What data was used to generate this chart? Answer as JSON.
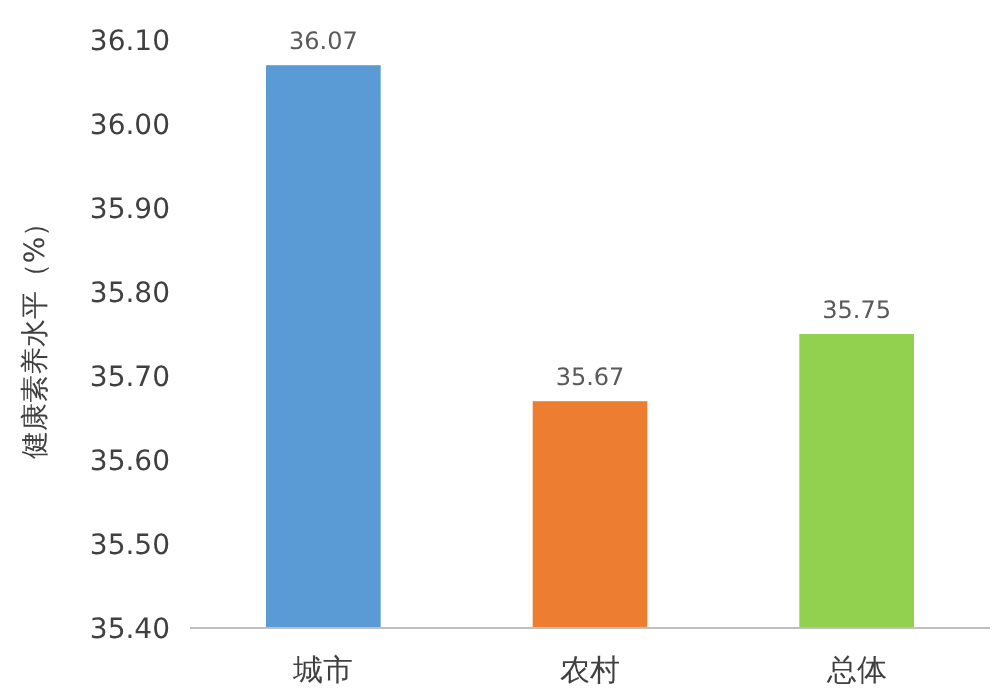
{
  "chart_data": {
    "type": "bar",
    "ylabel": "健康素养水平（%）",
    "categories": [
      "城市",
      "农村",
      "总体"
    ],
    "values": [
      36.07,
      35.67,
      35.75
    ],
    "colors": [
      "#5b9bd5",
      "#ed7d31",
      "#92d050"
    ],
    "ylim": [
      35.4,
      36.1
    ],
    "yticks": [
      {
        "value": 35.4,
        "label": "35.40"
      },
      {
        "value": 35.5,
        "label": "35.50"
      },
      {
        "value": 35.6,
        "label": "35.60"
      },
      {
        "value": 35.7,
        "label": "35.70"
      },
      {
        "value": 35.8,
        "label": "35.80"
      },
      {
        "value": 35.9,
        "label": "35.90"
      },
      {
        "value": 36.0,
        "label": "36.00"
      },
      {
        "value": 36.1,
        "label": "36.10"
      }
    ],
    "data_labels": true
  }
}
